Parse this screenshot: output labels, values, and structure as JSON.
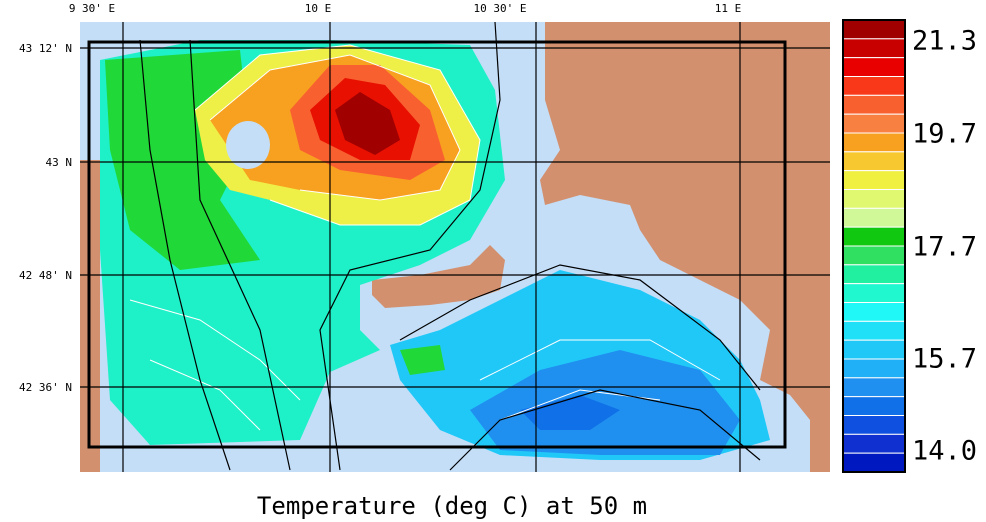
{
  "title": "Temperature (deg C) at 50 m",
  "longitude_labels": [
    "9 30' E",
    "10 E",
    "10 30' E",
    "11 E"
  ],
  "latitude_labels": [
    "43 12' N",
    "43 N",
    "42 48' N",
    "42 36' N"
  ],
  "colorbar": {
    "labels": [
      "21.3",
      "19.7",
      "17.7",
      "15.7",
      "14.0"
    ]
  }
}
